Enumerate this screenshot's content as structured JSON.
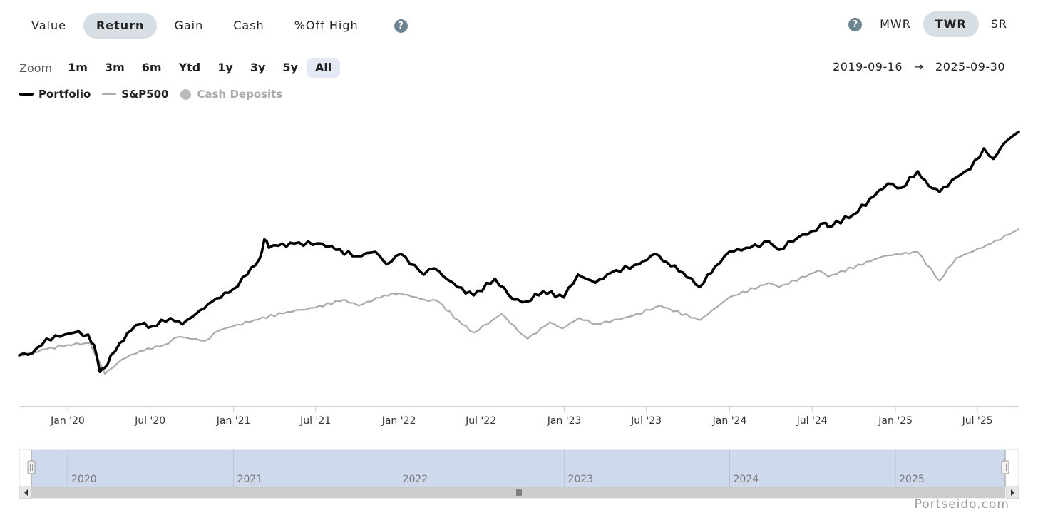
{
  "tabs": [
    {
      "label": "Value",
      "active": false
    },
    {
      "label": "Return",
      "active": true
    },
    {
      "label": "Gain",
      "active": false
    },
    {
      "label": "Cash",
      "active": false
    },
    {
      "label": "%Off High",
      "active": false
    }
  ],
  "help_glyph": "?",
  "methods": [
    {
      "label": "MWR",
      "active": false
    },
    {
      "label": "TWR",
      "active": true
    },
    {
      "label": "SR",
      "active": false
    }
  ],
  "zoom": {
    "label": "Zoom",
    "options": [
      {
        "label": "1m",
        "active": false
      },
      {
        "label": "3m",
        "active": false
      },
      {
        "label": "6m",
        "active": false
      },
      {
        "label": "Ytd",
        "active": false
      },
      {
        "label": "1y",
        "active": false
      },
      {
        "label": "3y",
        "active": false
      },
      {
        "label": "5y",
        "active": false
      },
      {
        "label": "All",
        "active": true
      }
    ]
  },
  "date_range": {
    "start": "2019-09-16",
    "arrow": "→",
    "end": "2025-09-30"
  },
  "watermark": "Portseido.com",
  "chart_data": {
    "type": "line",
    "x_range": [
      "2019-09-16",
      "2025-09-30"
    ],
    "x_tick_labels": [
      "Jan '20",
      "Jul '20",
      "Jan '21",
      "Jul '21",
      "Jan '22",
      "Jul '22",
      "Jan '23",
      "Jul '23",
      "Jan '24",
      "Jul '24",
      "Jan '25",
      "Jul '25"
    ],
    "y_axis_visible": false,
    "grid": false,
    "legend_position": "top-left",
    "legend": [
      {
        "name": "Portfolio",
        "color": "#000000",
        "visible": true
      },
      {
        "name": "S&P500",
        "color": "#aaaaaa",
        "visible": true
      },
      {
        "name": "Cash Deposits",
        "color": "#bbbbbb",
        "visible": false
      }
    ],
    "series": [
      {
        "name": "Portfolio",
        "color": "#000000",
        "points": [
          [
            "2019-09-16",
            0.0
          ],
          [
            "2019-10-15",
            0.5
          ],
          [
            "2019-11-15",
            4.0
          ],
          [
            "2019-12-15",
            4.5
          ],
          [
            "2020-01-15",
            5.5
          ],
          [
            "2020-02-15",
            5.0
          ],
          [
            "2020-02-28",
            2.5
          ],
          [
            "2020-03-12",
            -4.0
          ],
          [
            "2020-03-23",
            -3.0
          ],
          [
            "2020-04-05",
            0.0
          ],
          [
            "2020-04-25",
            3.0
          ],
          [
            "2020-05-20",
            6.0
          ],
          [
            "2020-06-10",
            7.5
          ],
          [
            "2020-07-05",
            7.0
          ],
          [
            "2020-08-15",
            9.0
          ],
          [
            "2020-09-10",
            7.5
          ],
          [
            "2020-10-10",
            10.0
          ],
          [
            "2020-11-15",
            13.0
          ],
          [
            "2020-12-31",
            16.0
          ],
          [
            "2021-01-31",
            19.5
          ],
          [
            "2021-02-28",
            23.5
          ],
          [
            "2021-03-10",
            28.0
          ],
          [
            "2021-03-20",
            26.0
          ],
          [
            "2021-04-10",
            26.5
          ],
          [
            "2021-05-15",
            27.0
          ],
          [
            "2021-07-15",
            27.0
          ],
          [
            "2021-08-15",
            25.5
          ],
          [
            "2021-09-30",
            24.0
          ],
          [
            "2021-11-10",
            25.0
          ],
          [
            "2021-12-05",
            22.0
          ],
          [
            "2022-01-05",
            24.5
          ],
          [
            "2022-02-25",
            19.5
          ],
          [
            "2022-03-20",
            21.0
          ],
          [
            "2022-05-10",
            16.5
          ],
          [
            "2022-06-15",
            14.5
          ],
          [
            "2022-08-01",
            18.5
          ],
          [
            "2022-09-10",
            13.5
          ],
          [
            "2022-10-10",
            13.0
          ],
          [
            "2022-11-15",
            15.5
          ],
          [
            "2022-12-31",
            14.0
          ],
          [
            "2023-01-31",
            19.5
          ],
          [
            "2023-03-10",
            17.5
          ],
          [
            "2023-04-15",
            20.0
          ],
          [
            "2023-06-15",
            22.0
          ],
          [
            "2023-07-20",
            24.5
          ],
          [
            "2023-08-15",
            22.5
          ],
          [
            "2023-09-20",
            20.0
          ],
          [
            "2023-10-27",
            16.5
          ],
          [
            "2023-11-30",
            21.5
          ],
          [
            "2023-12-31",
            25.0
          ],
          [
            "2024-02-15",
            26.0
          ],
          [
            "2024-03-28",
            27.5
          ],
          [
            "2024-04-19",
            25.5
          ],
          [
            "2024-05-31",
            28.5
          ],
          [
            "2024-06-30",
            30.0
          ],
          [
            "2024-07-31",
            32.0
          ],
          [
            "2024-08-05",
            31.0
          ],
          [
            "2024-09-30",
            34.0
          ],
          [
            "2024-11-15",
            38.5
          ],
          [
            "2024-12-15",
            41.5
          ],
          [
            "2025-01-15",
            40.5
          ],
          [
            "2025-02-19",
            44.5
          ],
          [
            "2025-03-15",
            41.0
          ],
          [
            "2025-04-08",
            39.5
          ],
          [
            "2025-05-15",
            43.0
          ],
          [
            "2025-06-15",
            45.0
          ],
          [
            "2025-07-15",
            50.0
          ],
          [
            "2025-08-05",
            47.5
          ],
          [
            "2025-08-31",
            51.5
          ],
          [
            "2025-09-30",
            54.0
          ]
        ]
      },
      {
        "name": "S&P500",
        "color": "#aaaaaa",
        "points": [
          [
            "2019-09-16",
            0.0
          ],
          [
            "2019-10-15",
            0.5
          ],
          [
            "2019-11-15",
            1.5
          ],
          [
            "2019-12-31",
            2.5
          ],
          [
            "2020-02-19",
            3.0
          ],
          [
            "2020-03-23",
            -4.5
          ],
          [
            "2020-04-30",
            -1.0
          ],
          [
            "2020-06-08",
            1.0
          ],
          [
            "2020-07-31",
            2.5
          ],
          [
            "2020-09-02",
            4.5
          ],
          [
            "2020-10-30",
            3.5
          ],
          [
            "2020-11-30",
            6.0
          ],
          [
            "2020-12-31",
            7.0
          ],
          [
            "2021-02-15",
            8.5
          ],
          [
            "2021-04-30",
            10.5
          ],
          [
            "2021-06-30",
            11.5
          ],
          [
            "2021-09-02",
            13.5
          ],
          [
            "2021-10-04",
            12.0
          ],
          [
            "2021-11-30",
            14.5
          ],
          [
            "2022-01-03",
            15.0
          ],
          [
            "2022-02-25",
            13.5
          ],
          [
            "2022-03-29",
            13.0
          ],
          [
            "2022-05-20",
            7.5
          ],
          [
            "2022-06-16",
            5.5
          ],
          [
            "2022-08-16",
            10.0
          ],
          [
            "2022-09-30",
            5.0
          ],
          [
            "2022-10-12",
            4.0
          ],
          [
            "2022-11-30",
            8.0
          ],
          [
            "2022-12-28",
            6.5
          ],
          [
            "2023-02-02",
            9.0
          ],
          [
            "2023-03-13",
            7.5
          ],
          [
            "2023-05-31",
            9.5
          ],
          [
            "2023-07-31",
            12.0
          ],
          [
            "2023-10-27",
            8.5
          ],
          [
            "2023-12-31",
            14.0
          ],
          [
            "2024-03-28",
            17.5
          ],
          [
            "2024-04-19",
            16.5
          ],
          [
            "2024-07-16",
            20.5
          ],
          [
            "2024-08-05",
            19.0
          ],
          [
            "2024-12-06",
            24.0
          ],
          [
            "2025-02-19",
            25.0
          ],
          [
            "2025-04-08",
            18.0
          ],
          [
            "2025-05-15",
            23.5
          ],
          [
            "2025-07-31",
            27.0
          ],
          [
            "2025-09-30",
            30.5
          ]
        ]
      }
    ],
    "navigator": {
      "year_labels": [
        "2020",
        "2021",
        "2022",
        "2023",
        "2024",
        "2025"
      ],
      "selection": [
        "2019-09-16",
        "2025-09-30"
      ]
    }
  }
}
